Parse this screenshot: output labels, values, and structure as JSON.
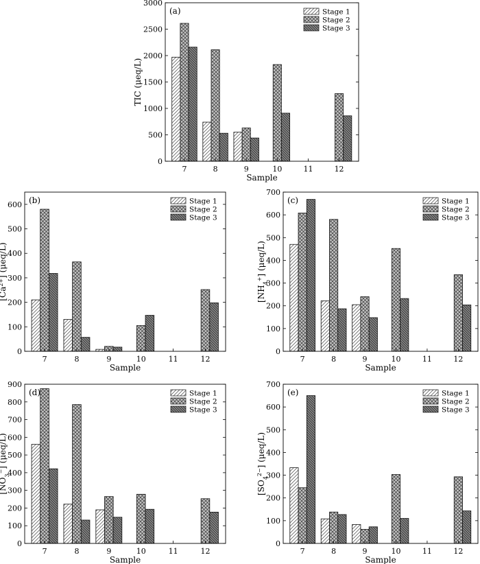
{
  "chart_data": [
    {
      "type": "bar",
      "panel_label": "(a)",
      "categories": [
        "7",
        "8",
        "9",
        "10",
        "11",
        "12"
      ],
      "series": [
        {
          "name": "Stage 1",
          "values": [
            1970,
            740,
            550,
            null,
            null,
            null
          ]
        },
        {
          "name": "Stage 2",
          "values": [
            2610,
            2110,
            630,
            1830,
            null,
            1280
          ]
        },
        {
          "name": "Stage 3",
          "values": [
            2160,
            530,
            440,
            910,
            null,
            860
          ]
        }
      ],
      "xlabel": "Sample",
      "ylabel": "TIC (μeq/L)",
      "ylim": [
        0,
        3000
      ],
      "yticks": [
        0,
        500,
        1000,
        1500,
        2000,
        2500,
        3000
      ],
      "legend": "top-right",
      "grid": false
    },
    {
      "type": "bar",
      "panel_label": "(b)",
      "categories": [
        "7",
        "8",
        "9",
        "10",
        "11",
        "12"
      ],
      "series": [
        {
          "name": "Stage 1",
          "values": [
            210,
            130,
            8,
            null,
            null,
            null
          ]
        },
        {
          "name": "Stage 2",
          "values": [
            580,
            365,
            20,
            105,
            null,
            252
          ]
        },
        {
          "name": "Stage 3",
          "values": [
            318,
            57,
            17,
            147,
            null,
            198
          ]
        }
      ],
      "xlabel": "Sample",
      "ylabel": "[Ca²⁺] (μeq/L)",
      "ylim": [
        0,
        650
      ],
      "yticks": [
        0,
        100,
        200,
        300,
        400,
        500,
        600
      ],
      "legend": "top-right",
      "grid": false
    },
    {
      "type": "bar",
      "panel_label": "(c)",
      "categories": [
        "7",
        "8",
        "9",
        "10",
        "11",
        "12"
      ],
      "series": [
        {
          "name": "Stage 1",
          "values": [
            470,
            222,
            205,
            null,
            null,
            null
          ]
        },
        {
          "name": "Stage 2",
          "values": [
            608,
            580,
            240,
            452,
            null,
            337
          ]
        },
        {
          "name": "Stage 3",
          "values": [
            668,
            187,
            148,
            232,
            null,
            204
          ]
        }
      ],
      "xlabel": "Sample",
      "ylabel": "[NH₄⁺] (μeq/L)",
      "ylim": [
        0,
        700
      ],
      "yticks": [
        0,
        100,
        200,
        300,
        400,
        500,
        600,
        700
      ],
      "legend": "top-right",
      "grid": false
    },
    {
      "type": "bar",
      "panel_label": "(d)",
      "categories": [
        "7",
        "8",
        "9",
        "10",
        "11",
        "12"
      ],
      "series": [
        {
          "name": "Stage 1",
          "values": [
            560,
            222,
            190,
            null,
            null,
            null
          ]
        },
        {
          "name": "Stage 2",
          "values": [
            875,
            785,
            265,
            278,
            null,
            253
          ]
        },
        {
          "name": "Stage 3",
          "values": [
            422,
            132,
            148,
            193,
            null,
            177
          ]
        }
      ],
      "xlabel": "Sample",
      "ylabel": "[NO₃⁻] (μeq/L)",
      "ylim": [
        0,
        900
      ],
      "yticks": [
        0,
        100,
        200,
        300,
        400,
        500,
        600,
        700,
        800,
        900
      ],
      "legend": "top-right",
      "grid": false
    },
    {
      "type": "bar",
      "panel_label": "(e)",
      "categories": [
        "7",
        "8",
        "9",
        "10",
        "11",
        "12"
      ],
      "series": [
        {
          "name": "Stage 1",
          "values": [
            333,
            108,
            83,
            null,
            null,
            null
          ]
        },
        {
          "name": "Stage 2",
          "values": [
            245,
            138,
            62,
            303,
            null,
            293
          ]
        },
        {
          "name": "Stage 3",
          "values": [
            650,
            127,
            73,
            110,
            null,
            143
          ]
        }
      ],
      "xlabel": "Sample",
      "ylabel": "[SO₄²⁻] (μeq/L)",
      "ylim": [
        0,
        700
      ],
      "yticks": [
        0,
        100,
        200,
        300,
        400,
        500,
        600,
        700
      ],
      "legend": "top-right",
      "grid": false
    }
  ]
}
